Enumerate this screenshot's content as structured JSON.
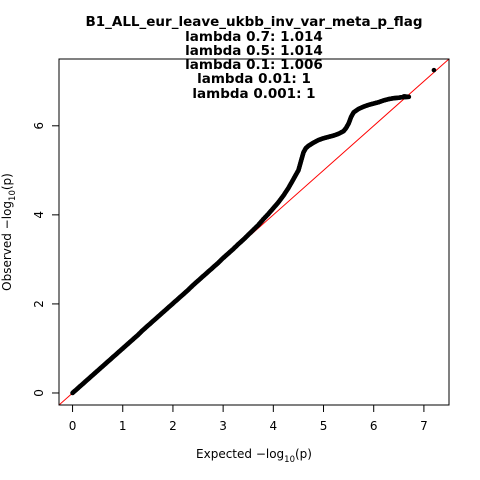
{
  "chart_data": {
    "type": "scatter",
    "title": "B1_ALL_eur_leave_ukbb_inv_var_meta_p_flag",
    "subtitle_lines": [
      "lambda 0.7: 1.014",
      "lambda 0.5: 1.014",
      "lambda 0.1: 1.006",
      "lambda 0.01: 1",
      "lambda 0.001: 1"
    ],
    "xlabel": {
      "prefix": "Expected  −log",
      "sub": "10",
      "suffix": "(p)"
    },
    "ylabel": {
      "prefix": "Observed  −log",
      "sub": "10",
      "suffix": "(p)"
    },
    "xlim": [
      -0.27,
      7.5
    ],
    "ylim": [
      -0.27,
      7.5
    ],
    "x_ticks": [
      "0",
      "1",
      "2",
      "3",
      "4",
      "5",
      "6",
      "7"
    ],
    "y_ticks": [
      "0",
      "2",
      "4",
      "6"
    ],
    "reference_line": {
      "slope": 1,
      "intercept": 0,
      "color": "#ff0000"
    },
    "point_color": "#000000",
    "grid": false,
    "legend": "none",
    "points": [
      [
        0,
        0
      ],
      [
        0.05,
        0.05
      ],
      [
        0.1,
        0.1
      ],
      [
        0.15,
        0.15
      ],
      [
        0.2,
        0.2
      ],
      [
        0.3,
        0.3
      ],
      [
        0.4,
        0.4
      ],
      [
        0.5,
        0.5
      ],
      [
        0.6,
        0.6
      ],
      [
        0.7,
        0.7
      ],
      [
        0.8,
        0.8
      ],
      [
        0.9,
        0.9
      ],
      [
        1.0,
        1.0
      ],
      [
        1.1,
        1.1
      ],
      [
        1.2,
        1.2
      ],
      [
        1.3,
        1.3
      ],
      [
        1.4,
        1.41
      ],
      [
        1.5,
        1.51
      ],
      [
        1.6,
        1.61
      ],
      [
        1.7,
        1.71
      ],
      [
        1.8,
        1.81
      ],
      [
        1.9,
        1.91
      ],
      [
        2.0,
        2.01
      ],
      [
        2.1,
        2.11
      ],
      [
        2.2,
        2.21
      ],
      [
        2.3,
        2.31
      ],
      [
        2.4,
        2.42
      ],
      [
        2.5,
        2.52
      ],
      [
        2.6,
        2.62
      ],
      [
        2.7,
        2.72
      ],
      [
        2.8,
        2.82
      ],
      [
        2.9,
        2.92
      ],
      [
        3.0,
        3.03
      ],
      [
        3.1,
        3.13
      ],
      [
        3.2,
        3.23
      ],
      [
        3.3,
        3.34
      ],
      [
        3.4,
        3.44
      ],
      [
        3.5,
        3.55
      ],
      [
        3.6,
        3.66
      ],
      [
        3.7,
        3.77
      ],
      [
        3.8,
        3.9
      ],
      [
        3.9,
        4.02
      ],
      [
        4.0,
        4.15
      ],
      [
        4.1,
        4.28
      ],
      [
        4.2,
        4.43
      ],
      [
        4.3,
        4.6
      ],
      [
        4.4,
        4.8
      ],
      [
        4.5,
        5.0
      ],
      [
        4.55,
        5.2
      ],
      [
        4.6,
        5.4
      ],
      [
        4.65,
        5.5
      ],
      [
        4.7,
        5.55
      ],
      [
        4.8,
        5.62
      ],
      [
        4.9,
        5.68
      ],
      [
        5.0,
        5.72
      ],
      [
        5.1,
        5.75
      ],
      [
        5.2,
        5.78
      ],
      [
        5.3,
        5.82
      ],
      [
        5.4,
        5.88
      ],
      [
        5.45,
        5.95
      ],
      [
        5.5,
        6.05
      ],
      [
        5.55,
        6.2
      ],
      [
        5.6,
        6.3
      ],
      [
        5.7,
        6.38
      ],
      [
        5.8,
        6.43
      ],
      [
        5.9,
        6.47
      ],
      [
        6.0,
        6.5
      ],
      [
        6.1,
        6.53
      ],
      [
        6.2,
        6.57
      ],
      [
        6.3,
        6.6
      ],
      [
        6.4,
        6.62
      ],
      [
        6.5,
        6.63
      ],
      [
        6.55,
        6.64
      ],
      [
        6.7,
        6.65
      ],
      [
        6.6,
        6.66
      ],
      [
        7.2,
        7.25
      ]
    ]
  }
}
